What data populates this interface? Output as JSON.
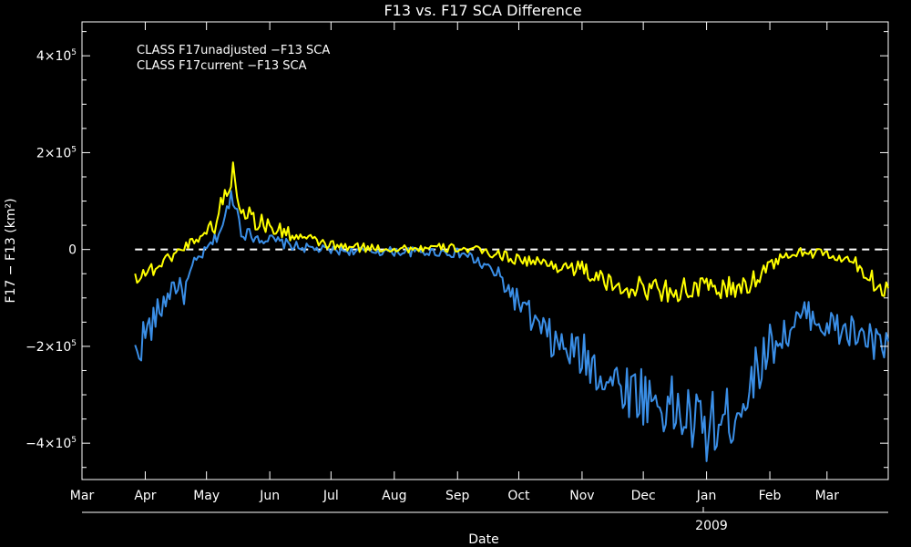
{
  "chart_data": {
    "type": "line",
    "title": "F13 vs. F17 SCA Difference",
    "xlabel": "Date",
    "ylabel": "F17 − F13 (km²)",
    "year_label": "2009",
    "x_ticks": [
      "Mar",
      "Apr",
      "May",
      "Jun",
      "Jul",
      "Aug",
      "Sep",
      "Oct",
      "Nov",
      "Dec",
      "Jan",
      "Feb",
      "Mar"
    ],
    "x_range": [
      "2008-03-01",
      "2009-03-31"
    ],
    "y_ticks": [
      {
        "value": 400000,
        "label_base": "4×10",
        "label_exp": "5"
      },
      {
        "value": 200000,
        "label_base": "2×10",
        "label_exp": "5"
      },
      {
        "value": 0,
        "label_base": "0",
        "label_exp": ""
      },
      {
        "value": -200000,
        "label_base": "−2×10",
        "label_exp": "5"
      },
      {
        "value": -400000,
        "label_base": "−4×10",
        "label_exp": "5"
      }
    ],
    "ylim": [
      -475000,
      470000
    ],
    "zero_line": true,
    "legend_position": "top-left",
    "series": [
      {
        "name": "CLASS F17unadjusted −F13 SCA",
        "color": "#3a8ee6",
        "anchors": [
          [
            "2008-03-27",
            -220000
          ],
          [
            "2008-03-31",
            -180000
          ],
          [
            "2008-04-05",
            -150000
          ],
          [
            "2008-04-10",
            -110000
          ],
          [
            "2008-04-15",
            -70000
          ],
          [
            "2008-04-20",
            -90000
          ],
          [
            "2008-04-25",
            -30000
          ],
          [
            "2008-04-30",
            -5000
          ],
          [
            "2008-05-05",
            20000
          ],
          [
            "2008-05-10",
            60000
          ],
          [
            "2008-05-14",
            120000
          ],
          [
            "2008-05-18",
            40000
          ],
          [
            "2008-05-22",
            30000
          ],
          [
            "2008-06-01",
            20000
          ],
          [
            "2008-06-15",
            5000
          ],
          [
            "2008-07-01",
            -2000
          ],
          [
            "2008-07-20",
            -3000
          ],
          [
            "2008-08-10",
            -5000
          ],
          [
            "2008-08-25",
            -5000
          ],
          [
            "2008-09-05",
            -10000
          ],
          [
            "2008-09-20",
            -50000
          ],
          [
            "2008-10-01",
            -110000
          ],
          [
            "2008-10-10",
            -160000
          ],
          [
            "2008-10-20",
            -200000
          ],
          [
            "2008-11-01",
            -220000
          ],
          [
            "2008-11-15",
            -270000
          ],
          [
            "2008-12-01",
            -300000
          ],
          [
            "2008-12-15",
            -330000
          ],
          [
            "2008-12-31",
            -370000
          ],
          [
            "2009-01-10",
            -360000
          ],
          [
            "2009-01-20",
            -300000
          ],
          [
            "2009-01-31",
            -200000
          ],
          [
            "2009-02-10",
            -170000
          ],
          [
            "2009-02-20",
            -130000
          ],
          [
            "2009-03-01",
            -160000
          ],
          [
            "2009-03-10",
            -170000
          ],
          [
            "2009-03-20",
            -180000
          ],
          [
            "2009-03-27",
            -210000
          ],
          [
            "2009-03-31",
            -190000
          ]
        ]
      },
      {
        "name": "CLASS F17current −F13 SCA",
        "color": "#ffff00",
        "anchors": [
          [
            "2008-03-27",
            -55000
          ],
          [
            "2008-04-05",
            -40000
          ],
          [
            "2008-04-15",
            -10000
          ],
          [
            "2008-04-25",
            20000
          ],
          [
            "2008-05-05",
            50000
          ],
          [
            "2008-05-14",
            160000
          ],
          [
            "2008-05-18",
            90000
          ],
          [
            "2008-05-25",
            60000
          ],
          [
            "2008-06-05",
            40000
          ],
          [
            "2008-06-20",
            20000
          ],
          [
            "2008-07-05",
            5000
          ],
          [
            "2008-08-01",
            2000
          ],
          [
            "2008-09-01",
            3000
          ],
          [
            "2008-09-15",
            -5000
          ],
          [
            "2008-10-01",
            -20000
          ],
          [
            "2008-10-15",
            -30000
          ],
          [
            "2008-11-01",
            -40000
          ],
          [
            "2008-11-15",
            -75000
          ],
          [
            "2008-12-01",
            -80000
          ],
          [
            "2008-12-15",
            -85000
          ],
          [
            "2009-01-01",
            -80000
          ],
          [
            "2009-01-20",
            -80000
          ],
          [
            "2009-02-01",
            -30000
          ],
          [
            "2009-02-15",
            -5000
          ],
          [
            "2009-03-01",
            -10000
          ],
          [
            "2009-03-15",
            -30000
          ],
          [
            "2009-03-25",
            -70000
          ],
          [
            "2009-03-31",
            -80000
          ]
        ]
      }
    ]
  }
}
